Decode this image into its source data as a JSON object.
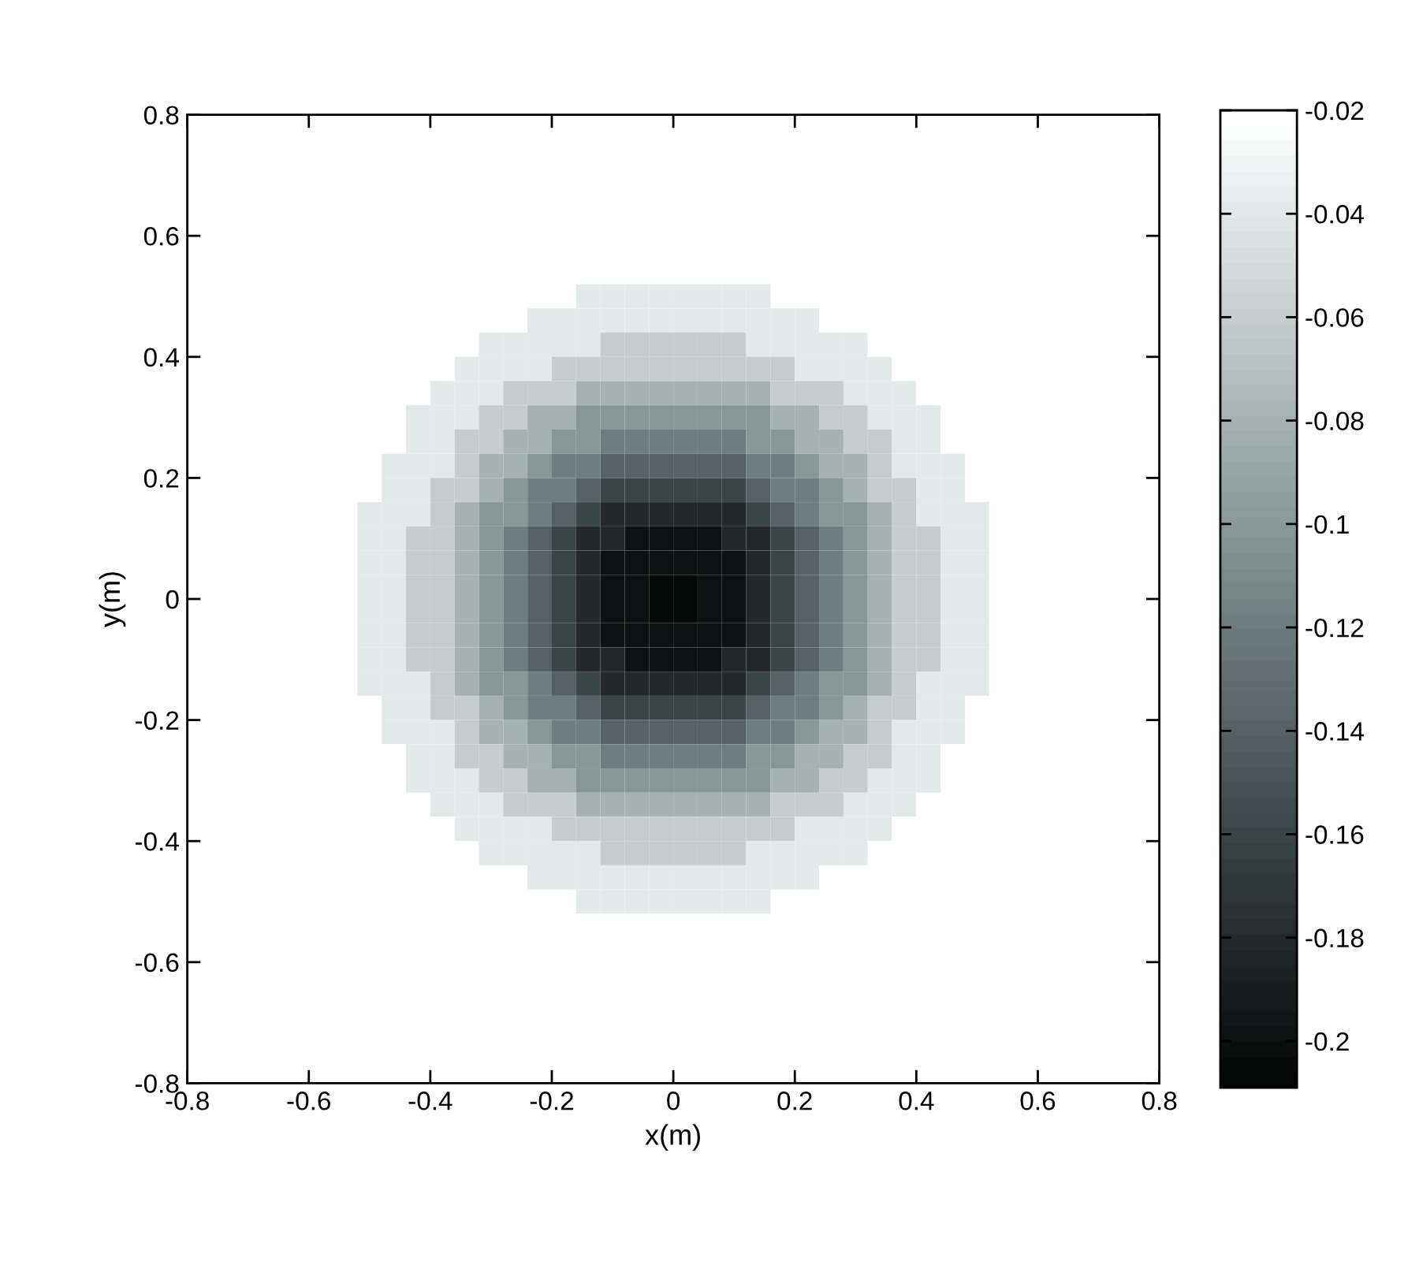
{
  "chart_data": {
    "type": "heatmap",
    "xlabel": "x(m)",
    "ylabel": "y(m)",
    "xlim": [
      -0.8,
      0.8
    ],
    "xticks": [
      -0.8,
      -0.6,
      -0.4,
      -0.2,
      0,
      0.2,
      0.4,
      0.6,
      0.8
    ],
    "ylim": [
      -0.8,
      0.8
    ],
    "yticks": [
      -0.8,
      -0.6,
      -0.4,
      -0.2,
      0,
      0.2,
      0.4,
      0.6,
      0.8
    ],
    "clim": [
      -0.209,
      -0.02
    ],
    "cticks": [
      -0.2,
      -0.18,
      -0.16,
      -0.14,
      -0.12,
      -0.1,
      -0.08,
      -0.06,
      -0.04,
      -0.02
    ],
    "cells": [
      [
        -0.02,
        -0.02,
        -0.02,
        -0.02,
        -0.02,
        -0.02,
        -0.02,
        -0.02,
        -0.02,
        -0.02,
        -0.02,
        -0.02,
        -0.02,
        -0.02,
        -0.02,
        -0.02,
        -0.02,
        -0.02,
        -0.02,
        -0.02,
        -0.02,
        -0.02,
        -0.02,
        -0.02,
        -0.02,
        -0.02,
        -0.02,
        -0.02,
        -0.02,
        -0.02,
        -0.02,
        -0.02,
        -0.02,
        -0.02,
        -0.02,
        -0.02,
        -0.02,
        -0.02,
        -0.02,
        -0.02
      ],
      [
        -0.02,
        -0.02,
        -0.02,
        -0.02,
        -0.02,
        -0.02,
        -0.02,
        -0.02,
        -0.02,
        -0.02,
        -0.02,
        -0.02,
        -0.02,
        -0.02,
        -0.02,
        -0.02,
        -0.02,
        -0.02,
        -0.02,
        -0.02,
        -0.02,
        -0.02,
        -0.02,
        -0.02,
        -0.02,
        -0.02,
        -0.02,
        -0.02,
        -0.02,
        -0.02,
        -0.02,
        -0.02,
        -0.02,
        -0.02,
        -0.02,
        -0.02,
        -0.02,
        -0.02,
        -0.02,
        -0.02
      ],
      [
        -0.02,
        -0.02,
        -0.02,
        -0.02,
        -0.02,
        -0.02,
        -0.02,
        -0.02,
        -0.02,
        -0.02,
        -0.02,
        -0.02,
        -0.02,
        -0.02,
        -0.02,
        -0.02,
        -0.02,
        -0.02,
        -0.02,
        -0.02,
        -0.02,
        -0.02,
        -0.02,
        -0.02,
        -0.02,
        -0.02,
        -0.02,
        -0.02,
        -0.02,
        -0.02,
        -0.02,
        -0.02,
        -0.02,
        -0.02,
        -0.02,
        -0.02,
        -0.02,
        -0.02,
        -0.02,
        -0.02
      ],
      [
        -0.02,
        -0.02,
        -0.02,
        -0.02,
        -0.02,
        -0.02,
        -0.02,
        -0.02,
        -0.02,
        -0.02,
        -0.02,
        -0.02,
        -0.02,
        -0.02,
        -0.02,
        -0.02,
        -0.02,
        -0.02,
        -0.02,
        -0.02,
        -0.02,
        -0.02,
        -0.02,
        -0.02,
        -0.02,
        -0.02,
        -0.02,
        -0.02,
        -0.02,
        -0.02,
        -0.02,
        -0.02,
        -0.02,
        -0.02,
        -0.02,
        -0.02,
        -0.02,
        -0.02,
        -0.02,
        -0.02
      ],
      [
        -0.02,
        -0.02,
        -0.02,
        -0.02,
        -0.02,
        -0.02,
        -0.02,
        -0.02,
        -0.02,
        -0.02,
        -0.02,
        -0.02,
        -0.02,
        -0.02,
        -0.02,
        -0.02,
        -0.02,
        -0.02,
        -0.02,
        -0.02,
        -0.02,
        -0.02,
        -0.02,
        -0.02,
        -0.02,
        -0.02,
        -0.02,
        -0.02,
        -0.02,
        -0.02,
        -0.02,
        -0.02,
        -0.02,
        -0.02,
        -0.02,
        -0.02,
        -0.02,
        -0.02,
        -0.02,
        -0.02
      ],
      [
        -0.02,
        -0.02,
        -0.02,
        -0.02,
        -0.02,
        -0.02,
        -0.02,
        -0.02,
        -0.02,
        -0.02,
        -0.02,
        -0.02,
        -0.02,
        -0.02,
        -0.02,
        -0.02,
        -0.02,
        -0.02,
        -0.02,
        -0.02,
        -0.02,
        -0.02,
        -0.02,
        -0.02,
        -0.02,
        -0.02,
        -0.02,
        -0.02,
        -0.02,
        -0.02,
        -0.02,
        -0.02,
        -0.02,
        -0.02,
        -0.02,
        -0.02,
        -0.02,
        -0.02,
        -0.02,
        -0.02
      ],
      [
        -0.02,
        -0.02,
        -0.02,
        -0.02,
        -0.02,
        -0.02,
        -0.02,
        -0.02,
        -0.02,
        -0.02,
        -0.02,
        -0.02,
        -0.02,
        -0.02,
        -0.02,
        -0.02,
        -0.02,
        -0.02,
        -0.02,
        -0.02,
        -0.02,
        -0.02,
        -0.02,
        -0.02,
        -0.02,
        -0.02,
        -0.02,
        -0.02,
        -0.02,
        -0.02,
        -0.02,
        -0.02,
        -0.02,
        -0.02,
        -0.02,
        -0.02,
        -0.02,
        -0.02,
        -0.02,
        -0.02
      ],
      [
        -0.02,
        -0.02,
        -0.02,
        -0.02,
        -0.02,
        -0.02,
        -0.02,
        -0.02,
        -0.02,
        -0.02,
        -0.02,
        -0.02,
        -0.02,
        -0.02,
        -0.02,
        -0.02,
        -0.04,
        -0.04,
        -0.04,
        -0.04,
        -0.04,
        -0.04,
        -0.04,
        -0.04,
        -0.02,
        -0.02,
        -0.02,
        -0.02,
        -0.02,
        -0.02,
        -0.02,
        -0.02,
        -0.02,
        -0.02,
        -0.02,
        -0.02,
        -0.02,
        -0.02,
        -0.02,
        -0.02
      ],
      [
        -0.02,
        -0.02,
        -0.02,
        -0.02,
        -0.02,
        -0.02,
        -0.02,
        -0.02,
        -0.02,
        -0.02,
        -0.02,
        -0.02,
        -0.02,
        -0.02,
        -0.04,
        -0.04,
        -0.04,
        -0.04,
        -0.04,
        -0.04,
        -0.04,
        -0.04,
        -0.04,
        -0.04,
        -0.04,
        -0.04,
        -0.02,
        -0.02,
        -0.02,
        -0.02,
        -0.02,
        -0.02,
        -0.02,
        -0.02,
        -0.02,
        -0.02,
        -0.02,
        -0.02,
        -0.02,
        -0.02
      ],
      [
        -0.02,
        -0.02,
        -0.02,
        -0.02,
        -0.02,
        -0.02,
        -0.02,
        -0.02,
        -0.02,
        -0.02,
        -0.02,
        -0.02,
        -0.04,
        -0.04,
        -0.04,
        -0.04,
        -0.04,
        -0.06,
        -0.06,
        -0.06,
        -0.06,
        -0.06,
        -0.06,
        -0.04,
        -0.04,
        -0.04,
        -0.04,
        -0.04,
        -0.02,
        -0.02,
        -0.02,
        -0.02,
        -0.02,
        -0.02,
        -0.02,
        -0.02,
        -0.02,
        -0.02,
        -0.02,
        -0.02
      ],
      [
        -0.02,
        -0.02,
        -0.02,
        -0.02,
        -0.02,
        -0.02,
        -0.02,
        -0.02,
        -0.02,
        -0.02,
        -0.02,
        -0.04,
        -0.04,
        -0.04,
        -0.04,
        -0.06,
        -0.06,
        -0.06,
        -0.06,
        -0.06,
        -0.06,
        -0.06,
        -0.06,
        -0.06,
        -0.06,
        -0.04,
        -0.04,
        -0.04,
        -0.04,
        -0.02,
        -0.02,
        -0.02,
        -0.02,
        -0.02,
        -0.02,
        -0.02,
        -0.02,
        -0.02,
        -0.02,
        -0.02
      ],
      [
        -0.02,
        -0.02,
        -0.02,
        -0.02,
        -0.02,
        -0.02,
        -0.02,
        -0.02,
        -0.02,
        -0.02,
        -0.04,
        -0.04,
        -0.04,
        -0.06,
        -0.06,
        -0.06,
        -0.08,
        -0.08,
        -0.08,
        -0.08,
        -0.08,
        -0.08,
        -0.08,
        -0.08,
        -0.06,
        -0.06,
        -0.06,
        -0.04,
        -0.04,
        -0.04,
        -0.02,
        -0.02,
        -0.02,
        -0.02,
        -0.02,
        -0.02,
        -0.02,
        -0.02,
        -0.02,
        -0.02
      ],
      [
        -0.02,
        -0.02,
        -0.02,
        -0.02,
        -0.02,
        -0.02,
        -0.02,
        -0.02,
        -0.02,
        -0.04,
        -0.04,
        -0.04,
        -0.06,
        -0.06,
        -0.08,
        -0.08,
        -0.1,
        -0.1,
        -0.1,
        -0.1,
        -0.1,
        -0.1,
        -0.1,
        -0.1,
        -0.08,
        -0.08,
        -0.06,
        -0.06,
        -0.04,
        -0.04,
        -0.04,
        -0.02,
        -0.02,
        -0.02,
        -0.02,
        -0.02,
        -0.02,
        -0.02,
        -0.02,
        -0.02
      ],
      [
        -0.02,
        -0.02,
        -0.02,
        -0.02,
        -0.02,
        -0.02,
        -0.02,
        -0.02,
        -0.02,
        -0.04,
        -0.04,
        -0.06,
        -0.06,
        -0.08,
        -0.08,
        -0.1,
        -0.1,
        -0.12,
        -0.12,
        -0.12,
        -0.12,
        -0.12,
        -0.12,
        -0.1,
        -0.1,
        -0.08,
        -0.08,
        -0.06,
        -0.06,
        -0.04,
        -0.04,
        -0.02,
        -0.02,
        -0.02,
        -0.02,
        -0.02,
        -0.02,
        -0.02,
        -0.02,
        -0.02
      ],
      [
        -0.02,
        -0.02,
        -0.02,
        -0.02,
        -0.02,
        -0.02,
        -0.02,
        -0.02,
        -0.04,
        -0.04,
        -0.04,
        -0.06,
        -0.08,
        -0.08,
        -0.1,
        -0.12,
        -0.12,
        -0.14,
        -0.14,
        -0.14,
        -0.14,
        -0.14,
        -0.14,
        -0.12,
        -0.12,
        -0.1,
        -0.08,
        -0.08,
        -0.06,
        -0.04,
        -0.04,
        -0.04,
        -0.02,
        -0.02,
        -0.02,
        -0.02,
        -0.02,
        -0.02,
        -0.02,
        -0.02
      ],
      [
        -0.02,
        -0.02,
        -0.02,
        -0.02,
        -0.02,
        -0.02,
        -0.02,
        -0.02,
        -0.04,
        -0.04,
        -0.06,
        -0.06,
        -0.08,
        -0.1,
        -0.12,
        -0.12,
        -0.14,
        -0.16,
        -0.16,
        -0.16,
        -0.16,
        -0.16,
        -0.16,
        -0.14,
        -0.12,
        -0.12,
        -0.1,
        -0.08,
        -0.06,
        -0.06,
        -0.04,
        -0.04,
        -0.02,
        -0.02,
        -0.02,
        -0.02,
        -0.02,
        -0.02,
        -0.02,
        -0.02
      ],
      [
        -0.02,
        -0.02,
        -0.02,
        -0.02,
        -0.02,
        -0.02,
        -0.02,
        -0.04,
        -0.04,
        -0.04,
        -0.06,
        -0.08,
        -0.1,
        -0.1,
        -0.12,
        -0.14,
        -0.16,
        -0.18,
        -0.18,
        -0.18,
        -0.18,
        -0.18,
        -0.18,
        -0.16,
        -0.14,
        -0.12,
        -0.1,
        -0.1,
        -0.08,
        -0.06,
        -0.04,
        -0.04,
        -0.04,
        -0.02,
        -0.02,
        -0.02,
        -0.02,
        -0.02,
        -0.02,
        -0.02
      ],
      [
        -0.02,
        -0.02,
        -0.02,
        -0.02,
        -0.02,
        -0.02,
        -0.02,
        -0.04,
        -0.04,
        -0.06,
        -0.06,
        -0.08,
        -0.1,
        -0.12,
        -0.14,
        -0.16,
        -0.18,
        -0.18,
        -0.2,
        -0.2,
        -0.2,
        -0.2,
        -0.18,
        -0.18,
        -0.16,
        -0.14,
        -0.12,
        -0.1,
        -0.08,
        -0.06,
        -0.06,
        -0.04,
        -0.04,
        -0.02,
        -0.02,
        -0.02,
        -0.02,
        -0.02,
        -0.02,
        -0.02
      ],
      [
        -0.02,
        -0.02,
        -0.02,
        -0.02,
        -0.02,
        -0.02,
        -0.02,
        -0.04,
        -0.04,
        -0.06,
        -0.06,
        -0.08,
        -0.1,
        -0.12,
        -0.14,
        -0.16,
        -0.18,
        -0.2,
        -0.2,
        -0.2,
        -0.2,
        -0.2,
        -0.2,
        -0.18,
        -0.16,
        -0.14,
        -0.12,
        -0.1,
        -0.08,
        -0.06,
        -0.06,
        -0.04,
        -0.04,
        -0.02,
        -0.02,
        -0.02,
        -0.02,
        -0.02,
        -0.02,
        -0.02
      ],
      [
        -0.02,
        -0.02,
        -0.02,
        -0.02,
        -0.02,
        -0.02,
        -0.02,
        -0.04,
        -0.04,
        -0.06,
        -0.06,
        -0.08,
        -0.1,
        -0.12,
        -0.14,
        -0.16,
        -0.18,
        -0.2,
        -0.2,
        -0.208,
        -0.208,
        -0.2,
        -0.2,
        -0.18,
        -0.16,
        -0.14,
        -0.12,
        -0.1,
        -0.08,
        -0.06,
        -0.06,
        -0.04,
        -0.04,
        -0.02,
        -0.02,
        -0.02,
        -0.02,
        -0.02,
        -0.02,
        -0.02
      ],
      [
        -0.02,
        -0.02,
        -0.02,
        -0.02,
        -0.02,
        -0.02,
        -0.02,
        -0.04,
        -0.04,
        -0.06,
        -0.06,
        -0.08,
        -0.1,
        -0.12,
        -0.14,
        -0.16,
        -0.18,
        -0.2,
        -0.2,
        -0.208,
        -0.208,
        -0.2,
        -0.2,
        -0.18,
        -0.16,
        -0.14,
        -0.12,
        -0.1,
        -0.08,
        -0.06,
        -0.06,
        -0.04,
        -0.04,
        -0.02,
        -0.02,
        -0.02,
        -0.02,
        -0.02,
        -0.02,
        -0.02
      ],
      [
        -0.02,
        -0.02,
        -0.02,
        -0.02,
        -0.02,
        -0.02,
        -0.02,
        -0.04,
        -0.04,
        -0.06,
        -0.06,
        -0.08,
        -0.1,
        -0.12,
        -0.14,
        -0.16,
        -0.18,
        -0.2,
        -0.2,
        -0.2,
        -0.2,
        -0.2,
        -0.2,
        -0.18,
        -0.16,
        -0.14,
        -0.12,
        -0.1,
        -0.08,
        -0.06,
        -0.06,
        -0.04,
        -0.04,
        -0.02,
        -0.02,
        -0.02,
        -0.02,
        -0.02,
        -0.02,
        -0.02
      ],
      [
        -0.02,
        -0.02,
        -0.02,
        -0.02,
        -0.02,
        -0.02,
        -0.02,
        -0.04,
        -0.04,
        -0.06,
        -0.06,
        -0.08,
        -0.1,
        -0.12,
        -0.14,
        -0.16,
        -0.18,
        -0.18,
        -0.2,
        -0.2,
        -0.2,
        -0.2,
        -0.18,
        -0.18,
        -0.16,
        -0.14,
        -0.12,
        -0.1,
        -0.08,
        -0.06,
        -0.06,
        -0.04,
        -0.04,
        -0.02,
        -0.02,
        -0.02,
        -0.02,
        -0.02,
        -0.02,
        -0.02
      ],
      [
        -0.02,
        -0.02,
        -0.02,
        -0.02,
        -0.02,
        -0.02,
        -0.02,
        -0.04,
        -0.04,
        -0.04,
        -0.06,
        -0.08,
        -0.1,
        -0.1,
        -0.12,
        -0.14,
        -0.16,
        -0.18,
        -0.18,
        -0.18,
        -0.18,
        -0.18,
        -0.18,
        -0.16,
        -0.14,
        -0.12,
        -0.1,
        -0.1,
        -0.08,
        -0.06,
        -0.04,
        -0.04,
        -0.04,
        -0.02,
        -0.02,
        -0.02,
        -0.02,
        -0.02,
        -0.02,
        -0.02
      ],
      [
        -0.02,
        -0.02,
        -0.02,
        -0.02,
        -0.02,
        -0.02,
        -0.02,
        -0.02,
        -0.04,
        -0.04,
        -0.06,
        -0.06,
        -0.08,
        -0.1,
        -0.12,
        -0.12,
        -0.14,
        -0.16,
        -0.16,
        -0.16,
        -0.16,
        -0.16,
        -0.16,
        -0.14,
        -0.12,
        -0.12,
        -0.1,
        -0.08,
        -0.06,
        -0.06,
        -0.04,
        -0.04,
        -0.02,
        -0.02,
        -0.02,
        -0.02,
        -0.02,
        -0.02,
        -0.02,
        -0.02
      ],
      [
        -0.02,
        -0.02,
        -0.02,
        -0.02,
        -0.02,
        -0.02,
        -0.02,
        -0.02,
        -0.04,
        -0.04,
        -0.04,
        -0.06,
        -0.08,
        -0.08,
        -0.1,
        -0.12,
        -0.12,
        -0.14,
        -0.14,
        -0.14,
        -0.14,
        -0.14,
        -0.14,
        -0.12,
        -0.12,
        -0.1,
        -0.08,
        -0.08,
        -0.06,
        -0.04,
        -0.04,
        -0.04,
        -0.02,
        -0.02,
        -0.02,
        -0.02,
        -0.02,
        -0.02,
        -0.02,
        -0.02
      ],
      [
        -0.02,
        -0.02,
        -0.02,
        -0.02,
        -0.02,
        -0.02,
        -0.02,
        -0.02,
        -0.02,
        -0.04,
        -0.04,
        -0.06,
        -0.06,
        -0.08,
        -0.08,
        -0.1,
        -0.1,
        -0.12,
        -0.12,
        -0.12,
        -0.12,
        -0.12,
        -0.12,
        -0.1,
        -0.1,
        -0.08,
        -0.08,
        -0.06,
        -0.06,
        -0.04,
        -0.04,
        -0.02,
        -0.02,
        -0.02,
        -0.02,
        -0.02,
        -0.02,
        -0.02,
        -0.02,
        -0.02
      ],
      [
        -0.02,
        -0.02,
        -0.02,
        -0.02,
        -0.02,
        -0.02,
        -0.02,
        -0.02,
        -0.02,
        -0.04,
        -0.04,
        -0.04,
        -0.06,
        -0.06,
        -0.08,
        -0.08,
        -0.1,
        -0.1,
        -0.1,
        -0.1,
        -0.1,
        -0.1,
        -0.1,
        -0.1,
        -0.08,
        -0.08,
        -0.06,
        -0.06,
        -0.04,
        -0.04,
        -0.04,
        -0.02,
        -0.02,
        -0.02,
        -0.02,
        -0.02,
        -0.02,
        -0.02,
        -0.02,
        -0.02
      ],
      [
        -0.02,
        -0.02,
        -0.02,
        -0.02,
        -0.02,
        -0.02,
        -0.02,
        -0.02,
        -0.02,
        -0.02,
        -0.04,
        -0.04,
        -0.04,
        -0.06,
        -0.06,
        -0.06,
        -0.08,
        -0.08,
        -0.08,
        -0.08,
        -0.08,
        -0.08,
        -0.08,
        -0.08,
        -0.06,
        -0.06,
        -0.06,
        -0.04,
        -0.04,
        -0.04,
        -0.02,
        -0.02,
        -0.02,
        -0.02,
        -0.02,
        -0.02,
        -0.02,
        -0.02,
        -0.02,
        -0.02
      ],
      [
        -0.02,
        -0.02,
        -0.02,
        -0.02,
        -0.02,
        -0.02,
        -0.02,
        -0.02,
        -0.02,
        -0.02,
        -0.02,
        -0.04,
        -0.04,
        -0.04,
        -0.04,
        -0.06,
        -0.06,
        -0.06,
        -0.06,
        -0.06,
        -0.06,
        -0.06,
        -0.06,
        -0.06,
        -0.06,
        -0.04,
        -0.04,
        -0.04,
        -0.04,
        -0.02,
        -0.02,
        -0.02,
        -0.02,
        -0.02,
        -0.02,
        -0.02,
        -0.02,
        -0.02,
        -0.02,
        -0.02
      ],
      [
        -0.02,
        -0.02,
        -0.02,
        -0.02,
        -0.02,
        -0.02,
        -0.02,
        -0.02,
        -0.02,
        -0.02,
        -0.02,
        -0.02,
        -0.04,
        -0.04,
        -0.04,
        -0.04,
        -0.04,
        -0.06,
        -0.06,
        -0.06,
        -0.06,
        -0.06,
        -0.06,
        -0.04,
        -0.04,
        -0.04,
        -0.04,
        -0.04,
        -0.02,
        -0.02,
        -0.02,
        -0.02,
        -0.02,
        -0.02,
        -0.02,
        -0.02,
        -0.02,
        -0.02,
        -0.02,
        -0.02
      ],
      [
        -0.02,
        -0.02,
        -0.02,
        -0.02,
        -0.02,
        -0.02,
        -0.02,
        -0.02,
        -0.02,
        -0.02,
        -0.02,
        -0.02,
        -0.02,
        -0.02,
        -0.04,
        -0.04,
        -0.04,
        -0.04,
        -0.04,
        -0.04,
        -0.04,
        -0.04,
        -0.04,
        -0.04,
        -0.04,
        -0.04,
        -0.02,
        -0.02,
        -0.02,
        -0.02,
        -0.02,
        -0.02,
        -0.02,
        -0.02,
        -0.02,
        -0.02,
        -0.02,
        -0.02,
        -0.02,
        -0.02
      ],
      [
        -0.02,
        -0.02,
        -0.02,
        -0.02,
        -0.02,
        -0.02,
        -0.02,
        -0.02,
        -0.02,
        -0.02,
        -0.02,
        -0.02,
        -0.02,
        -0.02,
        -0.02,
        -0.02,
        -0.04,
        -0.04,
        -0.04,
        -0.04,
        -0.04,
        -0.04,
        -0.04,
        -0.04,
        -0.02,
        -0.02,
        -0.02,
        -0.02,
        -0.02,
        -0.02,
        -0.02,
        -0.02,
        -0.02,
        -0.02,
        -0.02,
        -0.02,
        -0.02,
        -0.02,
        -0.02,
        -0.02
      ],
      [
        -0.02,
        -0.02,
        -0.02,
        -0.02,
        -0.02,
        -0.02,
        -0.02,
        -0.02,
        -0.02,
        -0.02,
        -0.02,
        -0.02,
        -0.02,
        -0.02,
        -0.02,
        -0.02,
        -0.02,
        -0.02,
        -0.02,
        -0.02,
        -0.02,
        -0.02,
        -0.02,
        -0.02,
        -0.02,
        -0.02,
        -0.02,
        -0.02,
        -0.02,
        -0.02,
        -0.02,
        -0.02,
        -0.02,
        -0.02,
        -0.02,
        -0.02,
        -0.02,
        -0.02,
        -0.02,
        -0.02
      ],
      [
        -0.02,
        -0.02,
        -0.02,
        -0.02,
        -0.02,
        -0.02,
        -0.02,
        -0.02,
        -0.02,
        -0.02,
        -0.02,
        -0.02,
        -0.02,
        -0.02,
        -0.02,
        -0.02,
        -0.02,
        -0.02,
        -0.02,
        -0.02,
        -0.02,
        -0.02,
        -0.02,
        -0.02,
        -0.02,
        -0.02,
        -0.02,
        -0.02,
        -0.02,
        -0.02,
        -0.02,
        -0.02,
        -0.02,
        -0.02,
        -0.02,
        -0.02,
        -0.02,
        -0.02,
        -0.02,
        -0.02
      ],
      [
        -0.02,
        -0.02,
        -0.02,
        -0.02,
        -0.02,
        -0.02,
        -0.02,
        -0.02,
        -0.02,
        -0.02,
        -0.02,
        -0.02,
        -0.02,
        -0.02,
        -0.02,
        -0.02,
        -0.02,
        -0.02,
        -0.02,
        -0.02,
        -0.02,
        -0.02,
        -0.02,
        -0.02,
        -0.02,
        -0.02,
        -0.02,
        -0.02,
        -0.02,
        -0.02,
        -0.02,
        -0.02,
        -0.02,
        -0.02,
        -0.02,
        -0.02,
        -0.02,
        -0.02,
        -0.02,
        -0.02
      ],
      [
        -0.02,
        -0.02,
        -0.02,
        -0.02,
        -0.02,
        -0.02,
        -0.02,
        -0.02,
        -0.02,
        -0.02,
        -0.02,
        -0.02,
        -0.02,
        -0.02,
        -0.02,
        -0.02,
        -0.02,
        -0.02,
        -0.02,
        -0.02,
        -0.02,
        -0.02,
        -0.02,
        -0.02,
        -0.02,
        -0.02,
        -0.02,
        -0.02,
        -0.02,
        -0.02,
        -0.02,
        -0.02,
        -0.02,
        -0.02,
        -0.02,
        -0.02,
        -0.02,
        -0.02,
        -0.02,
        -0.02
      ],
      [
        -0.02,
        -0.02,
        -0.02,
        -0.02,
        -0.02,
        -0.02,
        -0.02,
        -0.02,
        -0.02,
        -0.02,
        -0.02,
        -0.02,
        -0.02,
        -0.02,
        -0.02,
        -0.02,
        -0.02,
        -0.02,
        -0.02,
        -0.02,
        -0.02,
        -0.02,
        -0.02,
        -0.02,
        -0.02,
        -0.02,
        -0.02,
        -0.02,
        -0.02,
        -0.02,
        -0.02,
        -0.02,
        -0.02,
        -0.02,
        -0.02,
        -0.02,
        -0.02,
        -0.02,
        -0.02,
        -0.02
      ],
      [
        -0.02,
        -0.02,
        -0.02,
        -0.02,
        -0.02,
        -0.02,
        -0.02,
        -0.02,
        -0.02,
        -0.02,
        -0.02,
        -0.02,
        -0.02,
        -0.02,
        -0.02,
        -0.02,
        -0.02,
        -0.02,
        -0.02,
        -0.02,
        -0.02,
        -0.02,
        -0.02,
        -0.02,
        -0.02,
        -0.02,
        -0.02,
        -0.02,
        -0.02,
        -0.02,
        -0.02,
        -0.02,
        -0.02,
        -0.02,
        -0.02,
        -0.02,
        -0.02,
        -0.02,
        -0.02,
        -0.02
      ],
      [
        -0.02,
        -0.02,
        -0.02,
        -0.02,
        -0.02,
        -0.02,
        -0.02,
        -0.02,
        -0.02,
        -0.02,
        -0.02,
        -0.02,
        -0.02,
        -0.02,
        -0.02,
        -0.02,
        -0.02,
        -0.02,
        -0.02,
        -0.02,
        -0.02,
        -0.02,
        -0.02,
        -0.02,
        -0.02,
        -0.02,
        -0.02,
        -0.02,
        -0.02,
        -0.02,
        -0.02,
        -0.02,
        -0.02,
        -0.02,
        -0.02,
        -0.02,
        -0.02,
        -0.02,
        -0.02,
        -0.02
      ]
    ]
  }
}
